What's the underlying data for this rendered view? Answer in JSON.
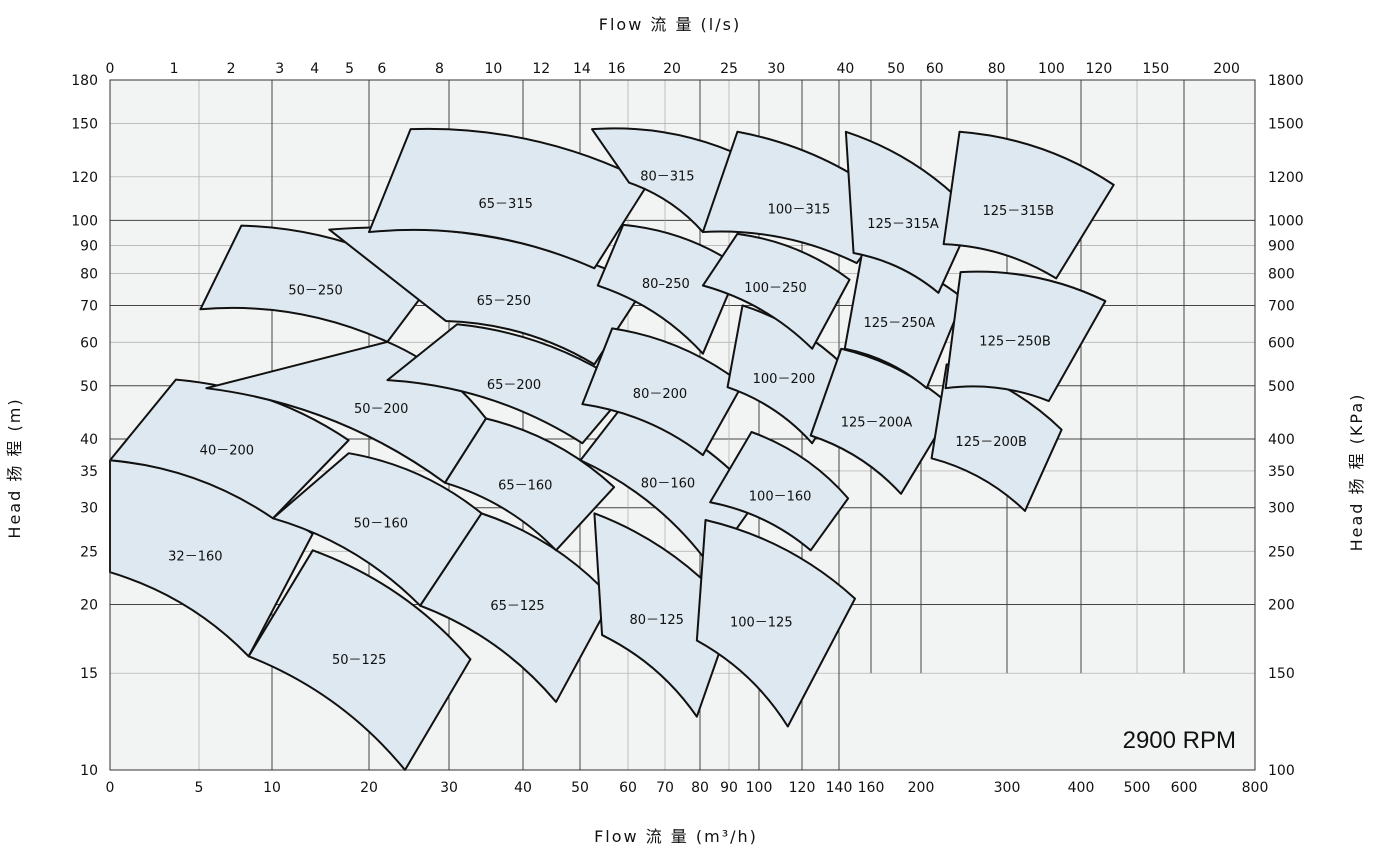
{
  "chart_data": {
    "type": "scatter",
    "title": "",
    "rpm_label": "2900 RPM",
    "x_label_bottom": "Flow 流 量   (m³/h)",
    "x_label_top": "Flow 流 量   (l/s)",
    "y_label_left": "Head 扬 程   (m)",
    "y_label_right": "Head 扬 程   (KPa)",
    "bottom_ticks": [
      0,
      5,
      10,
      20,
      30,
      40,
      50,
      60,
      70,
      80,
      90,
      100,
      120,
      140,
      160,
      200,
      300,
      400,
      500,
      600,
      800
    ],
    "top_ticks": [
      0,
      1,
      2,
      3,
      4,
      5,
      6,
      8,
      10,
      12,
      14,
      16,
      20,
      25,
      30,
      40,
      50,
      60,
      80,
      100,
      120,
      150,
      200
    ],
    "left_ticks": [
      10,
      15,
      20,
      25,
      30,
      35,
      40,
      50,
      60,
      70,
      80,
      90,
      100,
      120,
      150,
      180
    ],
    "right_ticks": [
      100,
      150,
      200,
      250,
      300,
      350,
      400,
      500,
      600,
      700,
      800,
      900,
      1000,
      1200,
      1500,
      1800
    ],
    "pump_zones": [
      {
        "name": "32-160",
        "label": "32－160",
        "corners": [
          [
            0,
            36.6
          ],
          [
            14.2,
            26.9
          ],
          [
            8.4,
            16.1
          ],
          [
            0,
            22.9
          ]
        ]
      },
      {
        "name": "40-200",
        "label": "40－200",
        "corners": [
          [
            3.7,
            51.3
          ],
          [
            17.9,
            39.8
          ],
          [
            10.1,
            28.7
          ],
          [
            0,
            36.6
          ]
        ]
      },
      {
        "name": "50-125",
        "label": "50－125",
        "corners": [
          [
            14.2,
            25.1
          ],
          [
            32.9,
            15.9
          ],
          [
            24.5,
            10.0
          ],
          [
            8.4,
            16.1
          ]
        ]
      },
      {
        "name": "50-160",
        "label": "50－160",
        "corners": [
          [
            17.9,
            37.7
          ],
          [
            34.4,
            29.3
          ],
          [
            26.4,
            19.9
          ],
          [
            10.1,
            28.7
          ]
        ]
      },
      {
        "name": "50-200",
        "label": "50－200",
        "corners": [
          [
            22.3,
            60.1
          ],
          [
            35.0,
            43.6
          ],
          [
            29.5,
            33.3
          ],
          [
            5.5,
            49.5
          ]
        ]
      },
      {
        "name": "50-250",
        "label": "50－250",
        "corners": [
          [
            7.9,
            97.8
          ],
          [
            28.0,
            77.5
          ],
          [
            22.3,
            60.1
          ],
          [
            5.1,
            68.9
          ]
        ]
      },
      {
        "name": "65-125",
        "label": "65－125",
        "corners": [
          [
            34.4,
            29.3
          ],
          [
            56.7,
            20.5
          ],
          [
            45.8,
            13.3
          ],
          [
            26.4,
            19.9
          ]
        ]
      },
      {
        "name": "65-160",
        "label": "65－160",
        "corners": [
          [
            35.0,
            43.6
          ],
          [
            57.1,
            32.7
          ],
          [
            45.8,
            25.1
          ],
          [
            29.5,
            33.3
          ]
        ]
      },
      {
        "name": "65-200",
        "label": "65－200",
        "corners": [
          [
            31.1,
            64.7
          ],
          [
            60.3,
            49.5
          ],
          [
            50.5,
            39.3
          ],
          [
            22.3,
            51.2
          ]
        ]
      },
      {
        "name": "65-250",
        "label": "65－250",
        "corners": [
          [
            15.9,
            96.2
          ],
          [
            64.8,
            76.1
          ],
          [
            53.0,
            54.7
          ],
          [
            29.6,
            65.6
          ]
        ]
      },
      {
        "name": "65-315",
        "label": "65－315",
        "corners": [
          [
            25.2,
            146.5
          ],
          [
            65.6,
            117.1
          ],
          [
            53.0,
            81.8
          ],
          [
            20.0,
            95.2
          ]
        ]
      },
      {
        "name": "80-125",
        "label": "80－125",
        "corners": [
          [
            53.0,
            29.3
          ],
          [
            91.5,
            19.4
          ],
          [
            79.1,
            12.5
          ],
          [
            54.6,
            17.6
          ]
        ]
      },
      {
        "name": "80-160",
        "label": "80－160",
        "corners": [
          [
            59.0,
            46.1
          ],
          [
            99.7,
            31.2
          ],
          [
            83.5,
            23.5
          ],
          [
            50.1,
            36.6
          ]
        ]
      },
      {
        "name": "80-200",
        "label": "80－200",
        "corners": [
          [
            56.7,
            63.6
          ],
          [
            94.5,
            50.3
          ],
          [
            81.0,
            37.4
          ],
          [
            50.5,
            46.3
          ]
        ]
      },
      {
        "name": "80-250",
        "label": "80–250",
        "corners": [
          [
            59.0,
            98.1
          ],
          [
            93.5,
            82.2
          ],
          [
            81.0,
            57.2
          ],
          [
            53.7,
            76.1
          ]
        ]
      },
      {
        "name": "80-315",
        "label": "80－315",
        "corners": [
          [
            52.5,
            146.5
          ],
          [
            95.5,
            130.0
          ],
          [
            81.0,
            95.2
          ],
          [
            60.3,
            117.1
          ]
        ]
      },
      {
        "name": "100-125",
        "label": "100－125",
        "corners": [
          [
            81.9,
            28.5
          ],
          [
            150.0,
            20.5
          ],
          [
            113.4,
            12.0
          ],
          [
            79.1,
            17.2
          ]
        ]
      },
      {
        "name": "100-160",
        "label": "100－160",
        "corners": [
          [
            97.5,
            41.2
          ],
          [
            145.7,
            31.2
          ],
          [
            124.7,
            25.1
          ],
          [
            83.5,
            30.7
          ]
        ]
      },
      {
        "name": "100-200",
        "label": "100－200",
        "corners": [
          [
            94.5,
            70.0
          ],
          [
            149.1,
            52.2
          ],
          [
            125.5,
            39.3
          ],
          [
            89.5,
            49.7
          ]
        ]
      },
      {
        "name": "100-250",
        "label": "100－250",
        "corners": [
          [
            92.8,
            94.5
          ],
          [
            146.6,
            78.0
          ],
          [
            125.5,
            58.4
          ],
          [
            81.0,
            76.1
          ]
        ]
      },
      {
        "name": "100-315",
        "label": "100－315",
        "corners": [
          [
            92.8,
            144.9
          ],
          [
            182.2,
            105.6
          ],
          [
            151.1,
            83.6
          ],
          [
            81.0,
            95.2
          ]
        ]
      },
      {
        "name": "125-200A",
        "label": "125－200A",
        "corners": [
          [
            141.4,
            58.4
          ],
          [
            237.2,
            45.6
          ],
          [
            184.0,
            31.8
          ],
          [
            124.7,
            40.6
          ]
        ]
      },
      {
        "name": "125-200B",
        "label": "125－200B",
        "corners": [
          [
            229.8,
            54.7
          ],
          [
            373.8,
            41.6
          ],
          [
            324.3,
            29.6
          ],
          [
            212.3,
            36.9
          ]
        ]
      },
      {
        "name": "125-250A",
        "label": "125－250A",
        "corners": [
          [
            154.4,
            87.2
          ],
          [
            249.4,
            72.0
          ],
          [
            206.6,
            49.5
          ],
          [
            143.6,
            58.4
          ]
        ]
      },
      {
        "name": "125-250B",
        "label": "125－250B",
        "corners": [
          [
            246.0,
            80.5
          ],
          [
            443.5,
            71.3
          ],
          [
            356.5,
            46.9
          ],
          [
            228.6,
            49.5
          ]
        ]
      },
      {
        "name": "125-315A",
        "label": "125－315A",
        "corners": [
          [
            144.3,
            144.9
          ],
          [
            261.7,
            102.4
          ],
          [
            220.3,
            73.8
          ],
          [
            149.1,
            87.2
          ]
        ]
      },
      {
        "name": "125-315B",
        "label": "125－315B",
        "corners": [
          [
            244.8,
            144.9
          ],
          [
            458.4,
            116.0
          ],
          [
            366.5,
            78.4
          ],
          [
            226.3,
            90.5
          ]
        ]
      }
    ]
  }
}
